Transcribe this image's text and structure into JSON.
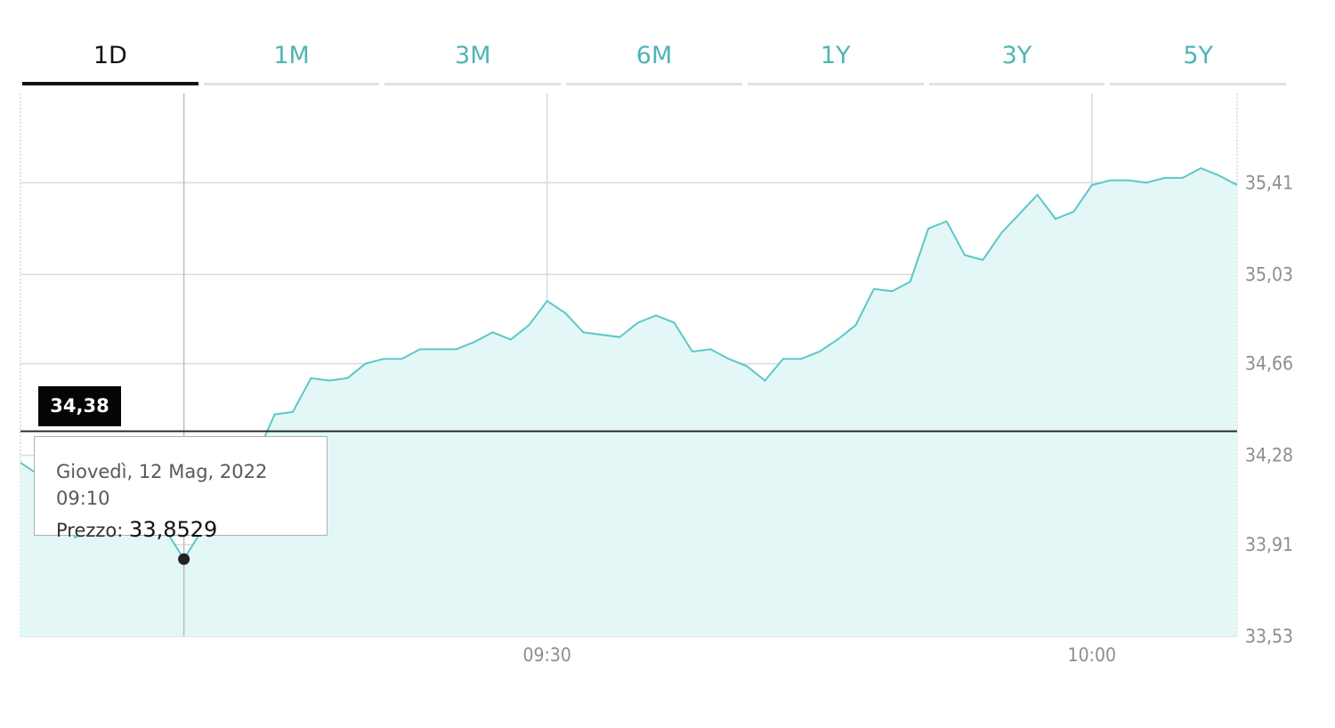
{
  "tabs": [
    {
      "label": "1D",
      "active": true
    },
    {
      "label": "1M",
      "active": false
    },
    {
      "label": "3M",
      "active": false
    },
    {
      "label": "6M",
      "active": false
    },
    {
      "label": "1Y",
      "active": false
    },
    {
      "label": "3Y",
      "active": false
    },
    {
      "label": "5Y",
      "active": false
    }
  ],
  "current_price_label": "34,38",
  "tooltip": {
    "date": "Giovedì, 12 Mag, 2022 09:10",
    "price_label": "Prezzo:",
    "price_value": "33,8529"
  },
  "colors": {
    "line": "#5cc8c8",
    "fill": "#e4f7f7",
    "accent_tab": "#4fb5b5",
    "current_price_line": "#222222"
  },
  "chart_data": {
    "type": "area",
    "x_ticks": [
      "09:30",
      "10:00"
    ],
    "y_ticks": [
      "35,41",
      "35,03",
      "34,66",
      "34,28",
      "33,91",
      "33,53"
    ],
    "ylim": [
      33.53,
      35.78
    ],
    "current_price": 34.38,
    "grid": true,
    "series": [
      {
        "x": [
          "09:01",
          "09:02",
          "09:03",
          "09:04",
          "09:05",
          "09:06",
          "09:07",
          "09:08",
          "09:09",
          "09:10",
          "09:11",
          "09:12",
          "09:13",
          "09:14",
          "09:15",
          "09:16",
          "09:17",
          "09:18",
          "09:19",
          "09:20",
          "09:21",
          "09:22",
          "09:23",
          "09:24",
          "09:25",
          "09:26",
          "09:27",
          "09:28",
          "09:29",
          "09:30",
          "09:31",
          "09:32",
          "09:33",
          "09:34",
          "09:35",
          "09:36",
          "09:37",
          "09:38",
          "09:39",
          "09:40",
          "09:41",
          "09:42",
          "09:43",
          "09:44",
          "09:45",
          "09:46",
          "09:47",
          "09:48",
          "09:49",
          "09:50",
          "09:51",
          "09:52",
          "09:53",
          "09:54",
          "09:55",
          "09:56",
          "09:57",
          "09:58",
          "09:59",
          "10:00",
          "10:01",
          "10:02",
          "10:03",
          "10:04",
          "10:05",
          "10:06",
          "10:07",
          "10:08"
        ],
        "values": [
          34.25,
          34.2,
          34.15,
          33.94,
          33.97,
          33.99,
          34.0,
          33.99,
          33.97,
          33.85,
          33.97,
          34.03,
          34.13,
          34.28,
          34.45,
          34.46,
          34.6,
          34.59,
          34.6,
          34.66,
          34.68,
          34.68,
          34.72,
          34.72,
          34.72,
          34.75,
          34.79,
          34.76,
          34.82,
          34.92,
          34.87,
          34.79,
          34.78,
          34.77,
          34.83,
          34.86,
          34.83,
          34.71,
          34.72,
          34.68,
          34.65,
          34.59,
          34.68,
          34.68,
          34.71,
          34.76,
          34.82,
          34.97,
          34.96,
          35.0,
          35.22,
          35.25,
          35.11,
          35.09,
          35.2,
          35.28,
          35.36,
          35.26,
          35.29,
          35.4,
          35.42,
          35.42,
          35.41,
          35.43,
          35.43,
          35.47,
          35.44,
          35.4
        ]
      }
    ]
  }
}
